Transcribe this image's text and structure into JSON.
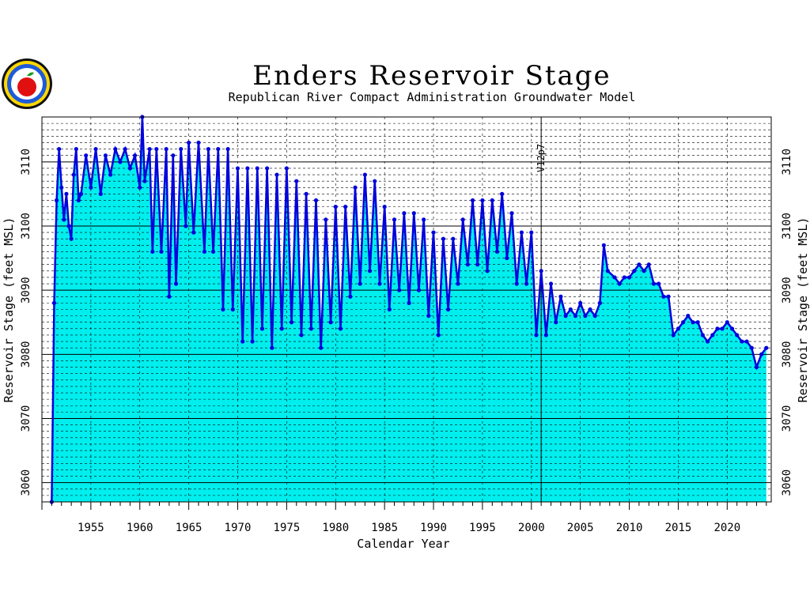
{
  "chart_data": {
    "type": "area",
    "title": "Enders Reservoir Stage",
    "subtitle": "Republican River Compact Administration Groundwater Model",
    "xlabel": "Calendar Year",
    "ylabel": "Reservoir Stage (feet MSL)",
    "xlim": [
      1950,
      2024.5
    ],
    "ylim": [
      3057,
      3117
    ],
    "x_ticks": [
      1955,
      1960,
      1965,
      1970,
      1975,
      1980,
      1985,
      1990,
      1995,
      2000,
      2005,
      2010,
      2015,
      2020
    ],
    "y_ticks": [
      3060,
      3070,
      3080,
      3090,
      3100,
      3110
    ],
    "grid": true,
    "fill_color": "#00eeee",
    "line_color": "#0000dd",
    "annotation": {
      "label": "V12p7",
      "x": 2001
    },
    "series": [
      {
        "x": [
          1951.0,
          1951.25,
          1951.5,
          1951.75,
          1952.0,
          1952.25,
          1952.5,
          1952.75,
          1953.0,
          1953.25,
          1953.5,
          1953.75,
          1954.0,
          1954.5,
          1955.0,
          1955.5,
          1956.0,
          1956.5,
          1957.0,
          1957.5,
          1958.0,
          1958.5,
          1959.0,
          1959.5,
          1960.0,
          1960.25,
          1960.5,
          1961.0,
          1961.3,
          1961.7,
          1962.2,
          1962.7,
          1963.0,
          1963.4,
          1963.7,
          1964.2,
          1964.7,
          1965.0,
          1965.5,
          1966.0,
          1966.6,
          1967.0,
          1967.5,
          1968.0,
          1968.5,
          1969.0,
          1969.5,
          1970.0,
          1970.5,
          1971.0,
          1971.5,
          1972.0,
          1972.5,
          1973.0,
          1973.5,
          1974.0,
          1974.5,
          1975.0,
          1975.5,
          1976.0,
          1976.5,
          1977.0,
          1977.5,
          1978.0,
          1978.5,
          1979.0,
          1979.5,
          1980.0,
          1980.5,
          1981.0,
          1981.5,
          1982.0,
          1982.5,
          1983.0,
          1983.5,
          1984.0,
          1984.5,
          1985.0,
          1985.5,
          1986.0,
          1986.5,
          1987.0,
          1987.5,
          1988.0,
          1988.5,
          1989.0,
          1989.5,
          1990.0,
          1990.5,
          1991.0,
          1991.5,
          1992.0,
          1992.5,
          1993.0,
          1993.5,
          1994.0,
          1994.5,
          1995.0,
          1995.5,
          1996.0,
          1996.5,
          1997.0,
          1997.5,
          1998.0,
          1998.5,
          1999.0,
          1999.5,
          2000.0,
          2000.5,
          2001.0,
          2001.5,
          2002.0,
          2002.5,
          2003.0,
          2003.5,
          2004.0,
          2004.5,
          2005.0,
          2005.5,
          2006.0,
          2006.5,
          2007.0,
          2007.4,
          2007.8,
          2008.5,
          2009.0,
          2009.5,
          2010.0,
          2010.5,
          2011.0,
          2011.5,
          2012.0,
          2012.5,
          2013.0,
          2013.5,
          2014.0,
          2014.5,
          2015.0,
          2015.5,
          2016.0,
          2016.5,
          2017.0,
          2017.5,
          2018.0,
          2018.5,
          2019.0,
          2019.5,
          2020.0,
          2020.5,
          2021.0,
          2021.5,
          2022.0,
          2022.5,
          2023.0,
          2023.5,
          2024.0
        ],
        "values": [
          3057,
          3088,
          3104,
          3112,
          3106,
          3101,
          3105,
          3100,
          3098,
          3108,
          3112,
          3104,
          3105,
          3111,
          3106,
          3112,
          3105,
          3111,
          3108,
          3112,
          3110,
          3112,
          3109,
          3111,
          3106,
          3117,
          3107,
          3112,
          3096,
          3112,
          3096,
          3112,
          3089,
          3111,
          3091,
          3112,
          3100,
          3113,
          3099,
          3113,
          3096,
          3112,
          3096,
          3112,
          3087,
          3112,
          3087,
          3109,
          3082,
          3109,
          3082,
          3109,
          3084,
          3109,
          3081,
          3108,
          3084,
          3109,
          3085,
          3107,
          3083,
          3105,
          3084,
          3104,
          3081,
          3101,
          3085,
          3103,
          3084,
          3103,
          3089,
          3106,
          3091,
          3108,
          3093,
          3107,
          3091,
          3103,
          3087,
          3101,
          3090,
          3102,
          3088,
          3102,
          3090,
          3101,
          3086,
          3099,
          3083,
          3098,
          3087,
          3098,
          3091,
          3101,
          3094,
          3104,
          3094,
          3104,
          3093,
          3104,
          3096,
          3105,
          3095,
          3102,
          3091,
          3099,
          3091,
          3099,
          3083,
          3093,
          3083,
          3091,
          3085,
          3089,
          3086,
          3087,
          3086,
          3088,
          3086,
          3087,
          3086,
          3088,
          3097,
          3093,
          3092,
          3091,
          3092,
          3092,
          3093,
          3094,
          3093,
          3094,
          3091,
          3091,
          3089,
          3089,
          3083,
          3084,
          3085,
          3086,
          3085,
          3085,
          3083,
          3082,
          3083,
          3084,
          3084,
          3085,
          3084,
          3083,
          3082,
          3082,
          3081,
          3078,
          3080,
          3081
        ]
      }
    ]
  }
}
